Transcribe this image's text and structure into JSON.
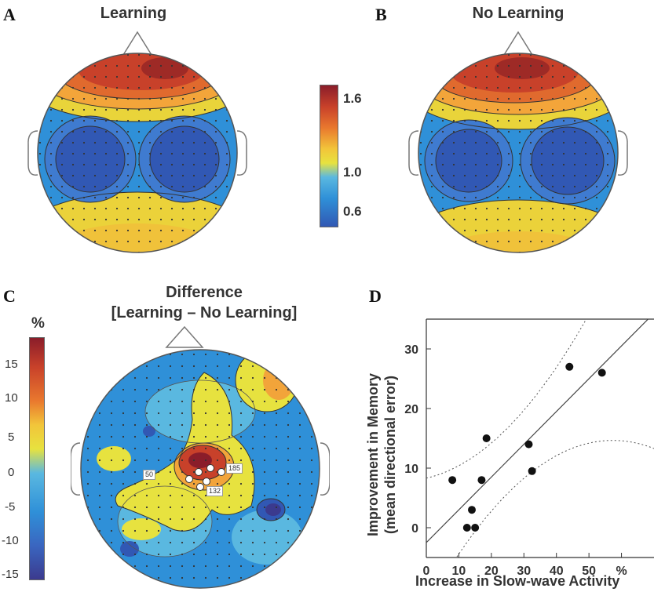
{
  "panels": {
    "A": {
      "letter": "A",
      "title": "Learning"
    },
    "B": {
      "letter": "B",
      "title": "No Learning"
    },
    "C": {
      "letter": "C",
      "title_line1": "Difference",
      "title_line2": "[Learning – No Learning]",
      "unit": "%"
    },
    "D": {
      "letter": "D"
    }
  },
  "colorbar_ab": {
    "ticks": [
      "1.6",
      "1.0",
      "0.6"
    ]
  },
  "colorbar_c": {
    "ticks": [
      "15",
      "10",
      "5",
      "0",
      "-5",
      "-10",
      "-15"
    ]
  },
  "electrode_labels": [
    "50",
    "185",
    "132"
  ],
  "chart_data": {
    "type": "scatter",
    "xlabel": "Increase in Slow-wave Activity",
    "ylabel_line1": "Improvement in Memory",
    "ylabel_line2": "(mean directional error)",
    "xlim": [
      0,
      70
    ],
    "ylim": [
      -5,
      35
    ],
    "xticks": [
      "0",
      "10",
      "20",
      "30",
      "40",
      "50",
      "%"
    ],
    "yticks": [
      "30",
      "20",
      "10",
      "0"
    ],
    "points": [
      {
        "x": 8,
        "y": 8
      },
      {
        "x": 12.5,
        "y": 0
      },
      {
        "x": 14,
        "y": 3
      },
      {
        "x": 15,
        "y": 0
      },
      {
        "x": 17,
        "y": 8
      },
      {
        "x": 18.5,
        "y": 15
      },
      {
        "x": 31.5,
        "y": 14
      },
      {
        "x": 32.5,
        "y": 9.5
      },
      {
        "x": 44,
        "y": 27
      },
      {
        "x": 54,
        "y": 26
      }
    ],
    "fit": {
      "intercept": -2.5,
      "slope": 0.55
    },
    "grid": false
  }
}
